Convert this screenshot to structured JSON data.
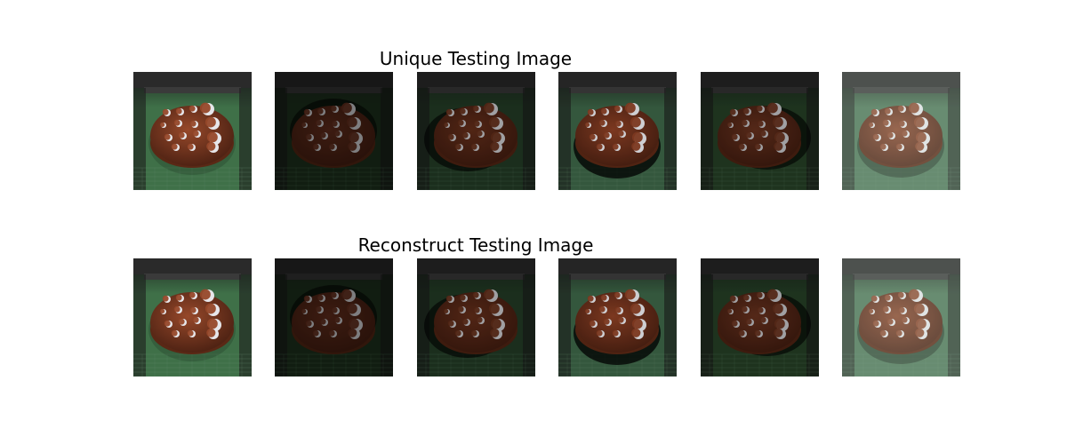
{
  "rows": [
    {
      "title": "Unique Testing Image",
      "images": [
        {
          "variant": "bright-green-lit"
        },
        {
          "variant": "dark-top-shadow"
        },
        {
          "variant": "dark-left-shadow"
        },
        {
          "variant": "bright-bottom-shadow"
        },
        {
          "variant": "dark-right-shadow"
        },
        {
          "variant": "foggy-green"
        }
      ]
    },
    {
      "title": "Reconstruct Testing Image",
      "images": [
        {
          "variant": "bright-green-lit"
        },
        {
          "variant": "dark-top-shadow"
        },
        {
          "variant": "dark-left-shadow"
        },
        {
          "variant": "bright-bottom-shadow"
        },
        {
          "variant": "dark-right-shadow"
        },
        {
          "variant": "foggy-green"
        }
      ]
    }
  ],
  "colors": {
    "background": "#ffffff",
    "conveyor_green": "#3c6a45",
    "cookie_brown": "#8a4327",
    "chip_white": "#e6e6ea"
  }
}
